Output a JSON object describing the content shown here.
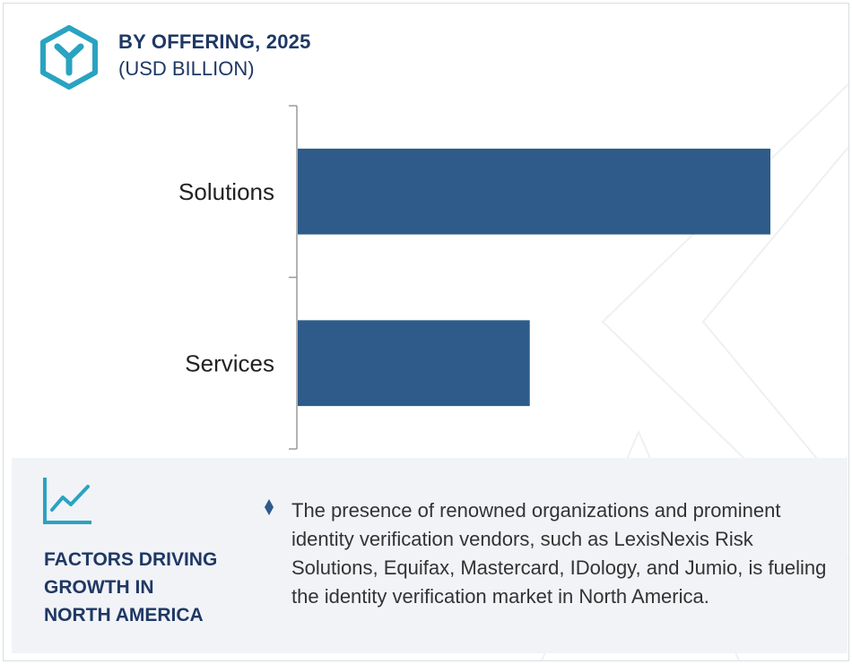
{
  "header": {
    "title": "BY OFFERING, 2025",
    "subtitle": "(USD BILLION)"
  },
  "colors": {
    "accent": "#29a3c1",
    "bar": "#2e5b8a",
    "heading": "#1f3864",
    "panel_bg": "#f1f3f7"
  },
  "icons": {
    "logo": "hexagon-y-logo-icon",
    "trend": "line-chart-trend-icon",
    "bullet": "diamond-bullet-icon"
  },
  "chart_data": {
    "type": "bar",
    "orientation": "horizontal",
    "categories": [
      "Solutions",
      "Services"
    ],
    "values": [
      5.5,
      2.7
    ],
    "title": "BY OFFERING, 2025",
    "subtitle": "(USD BILLION)",
    "xlabel": "",
    "ylabel": "",
    "grid": false,
    "data_labels": false
  },
  "factors": {
    "title_lines": [
      "FACTORS DRIVING",
      "GROWTH IN",
      "NORTH AMERICA"
    ],
    "text": "The presence of renowned organizations and prominent identity verification vendors, such as LexisNexis Risk Solutions, Equifax, Mastercard, IDology, and Jumio, is fueling the identity verification market in North America."
  }
}
